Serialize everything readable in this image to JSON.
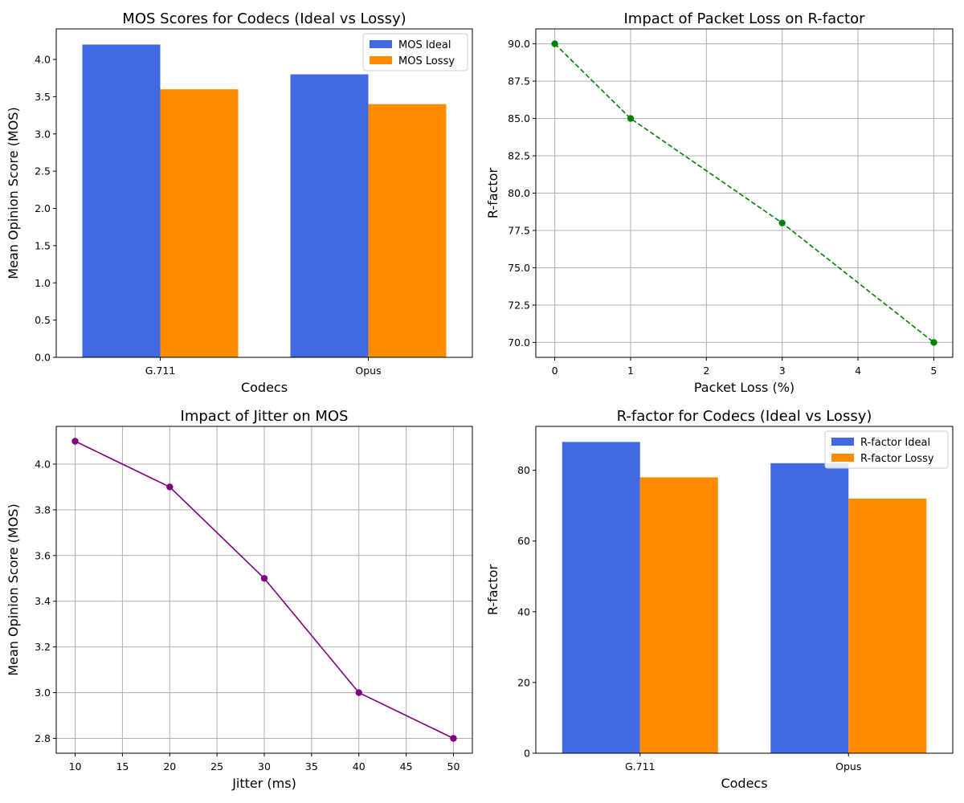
{
  "chart_data": [
    {
      "type": "bar",
      "title": "MOS Scores for Codecs (Ideal vs Lossy)",
      "xlabel": "Codecs",
      "ylabel": "Mean Opinion Score (MOS)",
      "categories": [
        "G.711",
        "Opus"
      ],
      "series": [
        {
          "name": "MOS Ideal",
          "values": [
            4.2,
            3.8
          ],
          "color": "#4169e1"
        },
        {
          "name": "MOS Lossy",
          "values": [
            3.6,
            3.4
          ],
          "color": "#ff8c00"
        }
      ],
      "ylim": [
        0,
        4.41
      ],
      "yticks": [
        "0.0",
        "0.5",
        "1.0",
        "1.5",
        "2.0",
        "2.5",
        "3.0",
        "3.5",
        "4.0"
      ],
      "legend": "top-right",
      "grid": false
    },
    {
      "type": "line",
      "title": "Impact of Packet Loss on R-factor",
      "xlabel": "Packet Loss (%)",
      "ylabel": "R-factor",
      "x": [
        0,
        1,
        3,
        5
      ],
      "series": [
        {
          "values": [
            90,
            85,
            78,
            70
          ],
          "color": "#008000",
          "style": "dashed",
          "marker": "circle"
        }
      ],
      "xlim": [
        -0.25,
        5.25
      ],
      "ylim": [
        69.0,
        91.0
      ],
      "xticks": [
        "0",
        "1",
        "2",
        "3",
        "4",
        "5"
      ],
      "yticks": [
        "70.0",
        "72.5",
        "75.0",
        "77.5",
        "80.0",
        "82.5",
        "85.0",
        "87.5",
        "90.0"
      ],
      "grid": true
    },
    {
      "type": "line",
      "title": "Impact of Jitter on MOS",
      "xlabel": "Jitter (ms)",
      "ylabel": "Mean Opinion Score (MOS)",
      "x": [
        10,
        20,
        30,
        40,
        50
      ],
      "series": [
        {
          "values": [
            4.1,
            3.9,
            3.5,
            3.0,
            2.8
          ],
          "color": "#800080",
          "style": "solid",
          "marker": "circle"
        }
      ],
      "xlim": [
        8,
        52
      ],
      "ylim": [
        2.735,
        4.165
      ],
      "xticks": [
        "10",
        "15",
        "20",
        "25",
        "30",
        "35",
        "40",
        "45",
        "50"
      ],
      "yticks": [
        "2.8",
        "3.0",
        "3.2",
        "3.4",
        "3.6",
        "3.8",
        "4.0"
      ],
      "grid": true
    },
    {
      "type": "bar",
      "title": "R-factor for Codecs (Ideal vs Lossy)",
      "xlabel": "Codecs",
      "ylabel": "R-factor",
      "categories": [
        "G.711",
        "Opus"
      ],
      "series": [
        {
          "name": "R-factor Ideal",
          "values": [
            88,
            82
          ],
          "color": "#4169e1"
        },
        {
          "name": "R-factor Lossy",
          "values": [
            78,
            72
          ],
          "color": "#ff8c00"
        }
      ],
      "ylim": [
        0,
        92.4
      ],
      "yticks": [
        "0",
        "20",
        "40",
        "60",
        "80"
      ],
      "legend": "top-right",
      "grid": false
    }
  ]
}
